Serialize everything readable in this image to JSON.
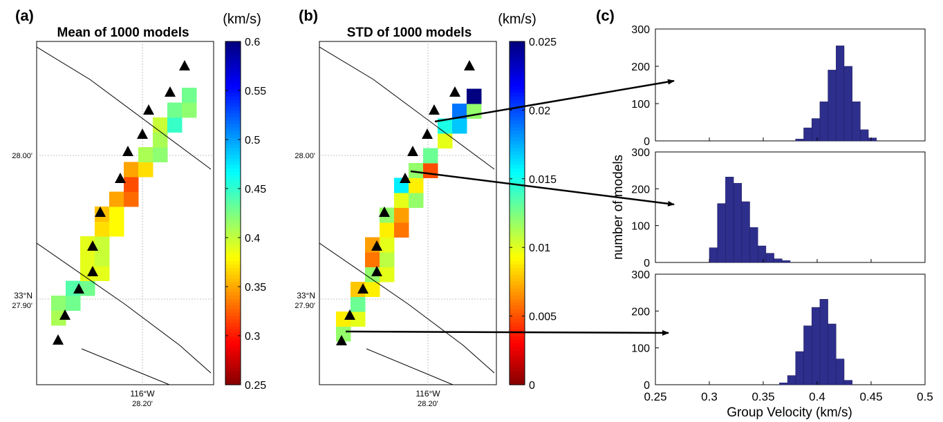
{
  "panels": {
    "a": {
      "tag": "(a)",
      "title": "Mean of 1000 models",
      "colorbar_unit": "(km/s)",
      "colorbar_ticks": [
        "0.6",
        "0.55",
        "0.5",
        "0.45",
        "0.4",
        "0.35",
        "0.3",
        "0.25"
      ],
      "lat_labels": [
        "28.00'",
        "33°N",
        "27.90'"
      ],
      "lon_labels": [
        "116°W",
        "28.20'"
      ]
    },
    "b": {
      "tag": "(b)",
      "title": "STD of 1000 models",
      "colorbar_unit": "(km/s)",
      "colorbar_ticks": [
        "0.025",
        "0.02",
        "0.015",
        "0.01",
        "0.005",
        "0"
      ],
      "lat_labels": [
        "28.00'",
        "33°N",
        "27.90'"
      ],
      "lon_labels": [
        "116°W",
        "28.20'"
      ]
    },
    "c": {
      "tag": "(c)",
      "ylabel": "number of models",
      "xlabel": "Group Velocity (km/s)",
      "x_ticks": [
        "0.25",
        "0.3",
        "0.35",
        "0.4",
        "0.45",
        "0.5"
      ],
      "y_ticks": [
        "0",
        "100",
        "200",
        "300"
      ]
    }
  },
  "colors": {
    "histogram_fill": "#2e2e8c",
    "map_line": "#000000",
    "gridline": "#b0b0b0"
  },
  "chart_data": [
    {
      "type": "heatmap",
      "title": "Mean of 1000 models",
      "colorbar": {
        "label": "(km/s)",
        "range": [
          0.25,
          0.6
        ],
        "colormap": "jet"
      },
      "cells": [
        {
          "col": 0,
          "row": 0,
          "value": 0.41
        },
        {
          "col": 0,
          "row": 1,
          "value": 0.42
        },
        {
          "col": 1,
          "row": 1,
          "value": 0.43
        },
        {
          "col": 1,
          "row": 2,
          "value": 0.44
        },
        {
          "col": 2,
          "row": 2,
          "value": 0.43
        },
        {
          "col": 2,
          "row": 3,
          "value": 0.39
        },
        {
          "col": 3,
          "row": 3,
          "value": 0.39
        },
        {
          "col": 2,
          "row": 4,
          "value": 0.39
        },
        {
          "col": 3,
          "row": 4,
          "value": 0.4
        },
        {
          "col": 2,
          "row": 5,
          "value": 0.39
        },
        {
          "col": 3,
          "row": 5,
          "value": 0.4
        },
        {
          "col": 3,
          "row": 6,
          "value": 0.37
        },
        {
          "col": 4,
          "row": 6,
          "value": 0.38
        },
        {
          "col": 3,
          "row": 7,
          "value": 0.36
        },
        {
          "col": 4,
          "row": 7,
          "value": 0.38
        },
        {
          "col": 4,
          "row": 8,
          "value": 0.35
        },
        {
          "col": 5,
          "row": 8,
          "value": 0.33
        },
        {
          "col": 5,
          "row": 9,
          "value": 0.32
        },
        {
          "col": 5,
          "row": 10,
          "value": 0.35
        },
        {
          "col": 6,
          "row": 10,
          "value": 0.37
        },
        {
          "col": 6,
          "row": 11,
          "value": 0.41
        },
        {
          "col": 7,
          "row": 11,
          "value": 0.42
        },
        {
          "col": 7,
          "row": 12,
          "value": 0.41
        },
        {
          "col": 7,
          "row": 13,
          "value": 0.4
        },
        {
          "col": 8,
          "row": 13,
          "value": 0.45
        },
        {
          "col": 8,
          "row": 14,
          "value": 0.43
        },
        {
          "col": 9,
          "row": 14,
          "value": 0.42
        },
        {
          "col": 9,
          "row": 15,
          "value": 0.43
        }
      ],
      "stations": 10
    },
    {
      "type": "heatmap",
      "title": "STD of 1000 models",
      "colorbar": {
        "label": "(km/s)",
        "range": [
          0,
          0.025
        ],
        "colormap": "jet"
      },
      "cells": [
        {
          "col": 0,
          "row": 0,
          "value": 0.012
        },
        {
          "col": 0,
          "row": 1,
          "value": 0.009
        },
        {
          "col": 1,
          "row": 1,
          "value": 0.01
        },
        {
          "col": 1,
          "row": 2,
          "value": 0.013
        },
        {
          "col": 1,
          "row": 3,
          "value": 0.008
        },
        {
          "col": 2,
          "row": 3,
          "value": 0.009
        },
        {
          "col": 2,
          "row": 4,
          "value": 0.012
        },
        {
          "col": 3,
          "row": 4,
          "value": 0.01
        },
        {
          "col": 2,
          "row": 5,
          "value": 0.006
        },
        {
          "col": 3,
          "row": 5,
          "value": 0.011
        },
        {
          "col": 2,
          "row": 6,
          "value": 0.007
        },
        {
          "col": 3,
          "row": 6,
          "value": 0.01
        },
        {
          "col": 3,
          "row": 7,
          "value": 0.009
        },
        {
          "col": 4,
          "row": 7,
          "value": 0.006
        },
        {
          "col": 3,
          "row": 8,
          "value": 0.012
        },
        {
          "col": 4,
          "row": 8,
          "value": 0.007
        },
        {
          "col": 4,
          "row": 9,
          "value": 0.01
        },
        {
          "col": 5,
          "row": 9,
          "value": 0.012
        },
        {
          "col": 4,
          "row": 10,
          "value": 0.016
        },
        {
          "col": 5,
          "row": 10,
          "value": 0.009
        },
        {
          "col": 5,
          "row": 11,
          "value": 0.012
        },
        {
          "col": 6,
          "row": 11,
          "value": 0.005
        },
        {
          "col": 6,
          "row": 12,
          "value": 0.013
        },
        {
          "col": 7,
          "row": 13,
          "value": 0.01
        },
        {
          "col": 7,
          "row": 14,
          "value": 0.015
        },
        {
          "col": 8,
          "row": 14,
          "value": 0.017
        },
        {
          "col": 8,
          "row": 15,
          "value": 0.019
        },
        {
          "col": 9,
          "row": 15,
          "value": 0.012
        },
        {
          "col": 9,
          "row": 16,
          "value": 0.025
        }
      ],
      "stations": 10
    },
    {
      "type": "bar",
      "subtype": "histogram",
      "xlabel": "Group Velocity (km/s)",
      "ylabel": "number of models",
      "xlim": [
        0.25,
        0.5
      ],
      "ylim": [
        0,
        300
      ],
      "bin_width": 0.0075,
      "series": [
        {
          "bin_start": 0.38,
          "values": [
            5,
            35,
            60,
            105,
            190,
            255,
            200,
            105,
            30,
            8
          ]
        },
        {
          "bin_start": 0.3,
          "values": [
            40,
            160,
            232,
            215,
            165,
            95,
            45,
            25,
            10,
            5
          ]
        },
        {
          "bin_start": 0.365,
          "values": [
            5,
            25,
            90,
            160,
            210,
            232,
            165,
            70,
            12
          ]
        }
      ]
    }
  ]
}
